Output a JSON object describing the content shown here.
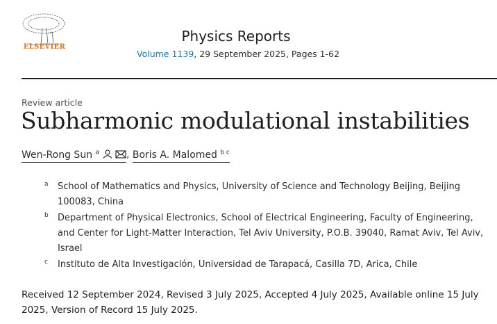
{
  "publisher": {
    "name": "ELSEVIER",
    "logo_icon": "elsevier-tree-logo",
    "color": "#e9711c"
  },
  "journal": {
    "name": "Physics Reports",
    "volume_link": "Volume 1139",
    "issue_info": ", 29 September 2025, Pages 1-62",
    "link_color": "#0c7dbb"
  },
  "article": {
    "type": "Review article",
    "title": "Subharmonic modulational instabilities"
  },
  "authors": [
    {
      "name": "Wen-Rong Sun",
      "sup": "a",
      "icons": [
        "person-icon",
        "email-icon"
      ]
    },
    {
      "name": "Boris A. Malomed",
      "sup": "b c"
    }
  ],
  "affiliations": [
    {
      "label": "a",
      "text": "School of Mathematics and Physics, University of Science and Technology Beijing, Beijing 100083, China"
    },
    {
      "label": "b",
      "text": "Department of Physical Electronics, School of Electrical Engineering, Faculty of Engineering, and Center for Light-Matter Interaction, Tel Aviv University, P.O.B. 39040, Ramat Aviv, Tel Aviv, Israel"
    },
    {
      "label": "c",
      "text": "Instituto de Alta Investigación, Universidad de Tarapacá, Casilla 7D, Arica, Chile"
    }
  ],
  "dates": "Received 12 September 2024, Revised 3 July 2025, Accepted 4 July 2025, Available online 15 July 2025, Version of Record 15 July 2025."
}
